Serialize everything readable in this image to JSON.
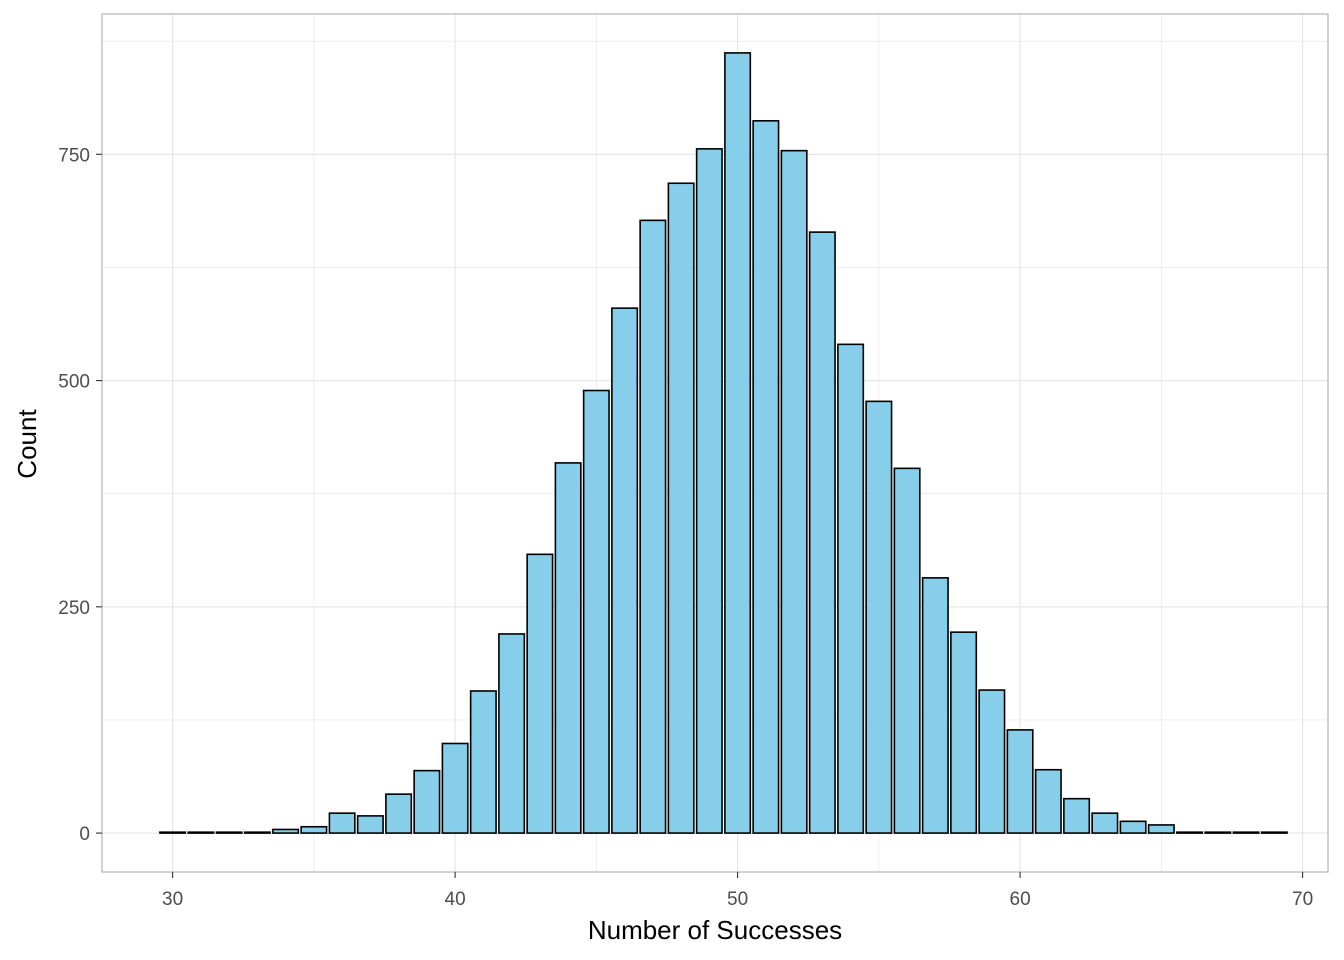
{
  "chart_data": {
    "type": "bar",
    "title": "",
    "xlabel": "Number of Successes",
    "ylabel": "Count",
    "x": [
      30,
      31,
      32,
      33,
      34,
      35,
      36,
      37,
      38,
      39,
      40,
      41,
      42,
      43,
      44,
      45,
      46,
      47,
      48,
      49,
      50,
      51,
      52,
      53,
      54,
      55,
      56,
      57,
      58,
      59,
      60,
      61,
      62,
      63,
      64,
      65,
      66,
      67,
      68,
      69
    ],
    "values": [
      1,
      1,
      1,
      1,
      4,
      7,
      22,
      19,
      43,
      69,
      99,
      157,
      220,
      308,
      409,
      489,
      580,
      677,
      718,
      756,
      862,
      787,
      754,
      664,
      540,
      477,
      403,
      282,
      222,
      158,
      114,
      70,
      38,
      22,
      13,
      9,
      1,
      1,
      1,
      1
    ],
    "xlim": [
      27.5,
      70.9
    ],
    "ylim": [
      -43,
      905
    ],
    "x_ticks": [
      30,
      40,
      50,
      60,
      70
    ],
    "x_tick_labels": [
      "30",
      "40",
      "50",
      "60",
      "70"
    ],
    "y_ticks": [
      0,
      250,
      500,
      750
    ],
    "y_tick_labels": [
      "0",
      "250",
      "500",
      "750"
    ],
    "grid": true,
    "bar_fill": "#87ceeb",
    "bar_stroke": "#000000",
    "panel_border": "#b3b3b3",
    "grid_color": "#e5e5e5"
  }
}
